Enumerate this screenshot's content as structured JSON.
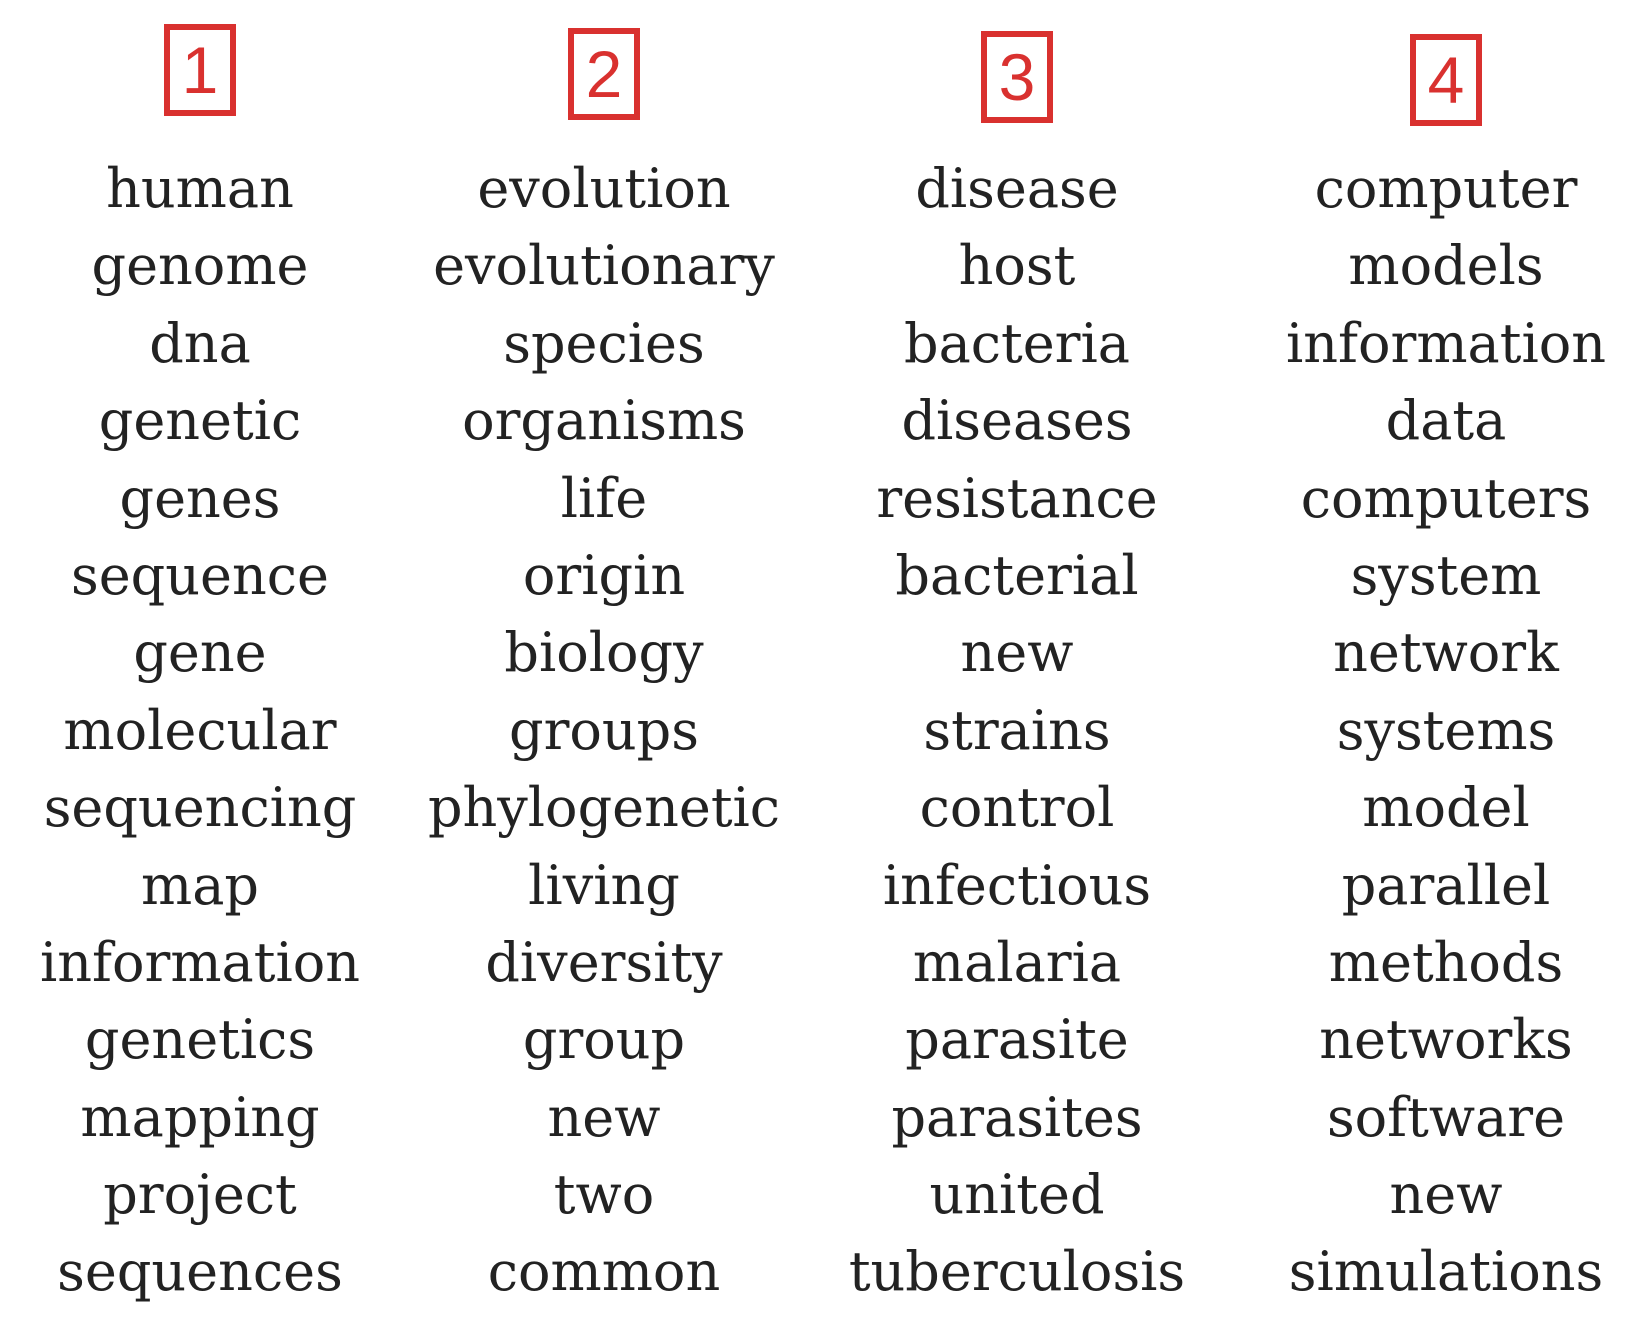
{
  "accent_color": "#d9312f",
  "topics": [
    {
      "label": "1",
      "words": [
        "human",
        "genome",
        "dna",
        "genetic",
        "genes",
        "sequence",
        "gene",
        "molecular",
        "sequencing",
        "map",
        "information",
        "genetics",
        "mapping",
        "project",
        "sequences"
      ]
    },
    {
      "label": "2",
      "words": [
        "evolution",
        "evolutionary",
        "species",
        "organisms",
        "life",
        "origin",
        "biology",
        "groups",
        "phylogenetic",
        "living",
        "diversity",
        "group",
        "new",
        "two",
        "common"
      ]
    },
    {
      "label": "3",
      "words": [
        "disease",
        "host",
        "bacteria",
        "diseases",
        "resistance",
        "bacterial",
        "new",
        "strains",
        "control",
        "infectious",
        "malaria",
        "parasite",
        "parasites",
        "united",
        "tuberculosis"
      ]
    },
    {
      "label": "4",
      "words": [
        "computer",
        "models",
        "information",
        "data",
        "computers",
        "system",
        "network",
        "systems",
        "model",
        "parallel",
        "methods",
        "networks",
        "software",
        "new",
        "simulations"
      ]
    }
  ]
}
